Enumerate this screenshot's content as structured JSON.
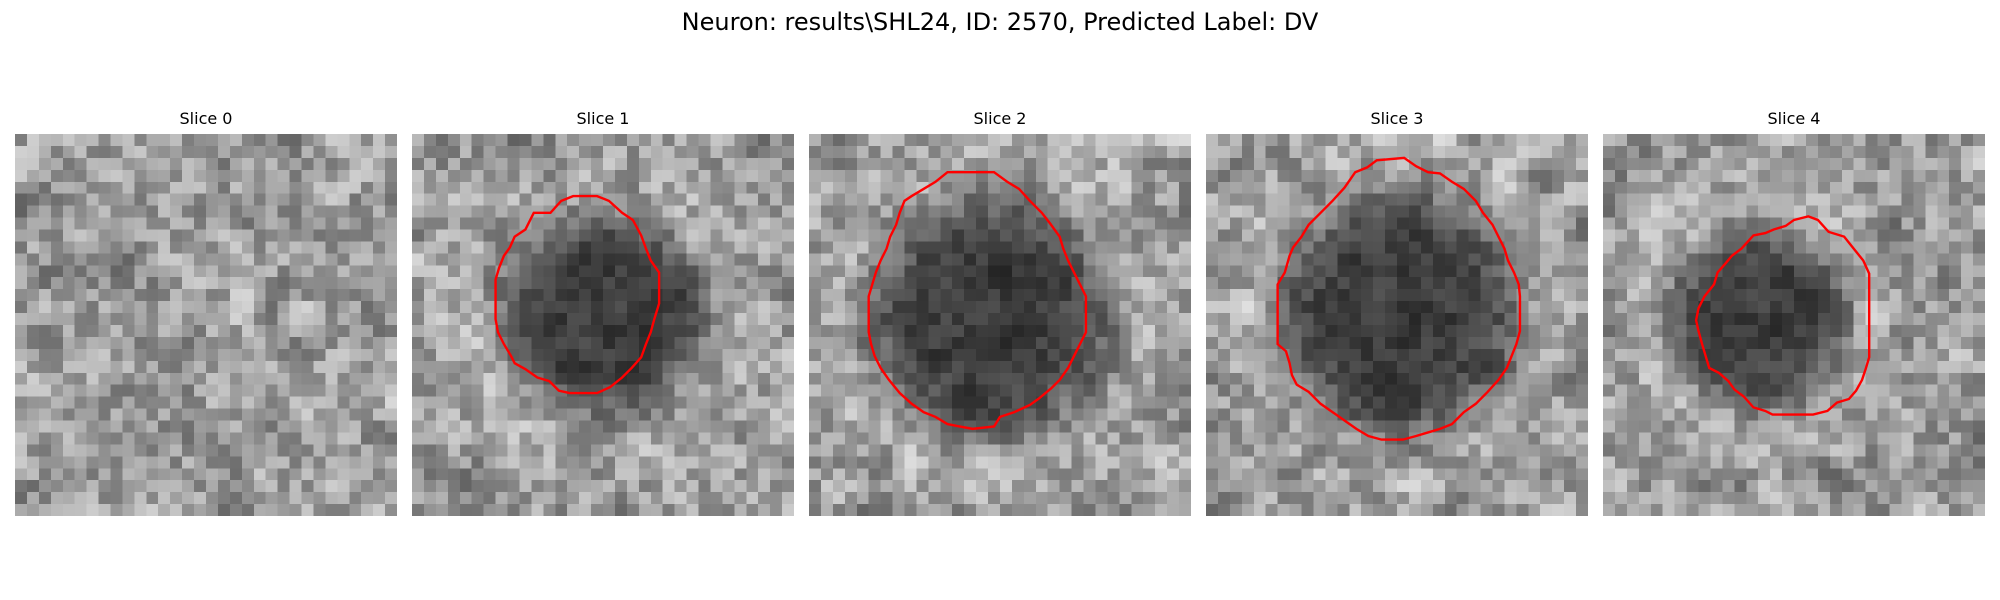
{
  "title": "Neuron: results\\SHL24, ID: 2570, Predicted Label: DV",
  "contour_color": "#ff0000",
  "colormap": "gray",
  "grid_size": 32,
  "slices": [
    {
      "label": "Slice 0",
      "seed": 11,
      "has_contour": false,
      "blob": null,
      "contour": []
    },
    {
      "label": "Slice 1",
      "seed": 23,
      "has_contour": true,
      "blob": {
        "cx": 16.0,
        "cy": 15.2,
        "rx": 8.6,
        "ry": 8.2
      },
      "contour": [
        [
          10.2,
          6.6
        ],
        [
          11.6,
          6.6
        ],
        [
          12.5,
          5.6
        ],
        [
          13.5,
          5.2
        ],
        [
          15.5,
          5.2
        ],
        [
          16.5,
          5.6
        ],
        [
          17.6,
          6.6
        ],
        [
          18.5,
          7.2
        ],
        [
          19.2,
          8.5
        ],
        [
          19.6,
          9.6
        ],
        [
          20.0,
          10.6
        ],
        [
          20.7,
          11.6
        ],
        [
          20.7,
          14.2
        ],
        [
          20.3,
          15.5
        ],
        [
          20.0,
          16.6
        ],
        [
          19.6,
          17.6
        ],
        [
          19.2,
          18.7
        ],
        [
          18.4,
          19.6
        ],
        [
          17.6,
          20.4
        ],
        [
          16.6,
          21.2
        ],
        [
          15.5,
          21.7
        ],
        [
          13.2,
          21.7
        ],
        [
          12.3,
          21.5
        ],
        [
          11.5,
          20.7
        ],
        [
          10.5,
          20.4
        ],
        [
          9.5,
          19.7
        ],
        [
          8.6,
          19.2
        ],
        [
          8.3,
          18.6
        ],
        [
          7.7,
          17.6
        ],
        [
          7.2,
          16.6
        ],
        [
          7.0,
          15.5
        ],
        [
          7.0,
          12.2
        ],
        [
          7.3,
          11.2
        ],
        [
          7.7,
          10.2
        ],
        [
          8.2,
          9.5
        ],
        [
          8.6,
          8.6
        ],
        [
          9.5,
          8.0
        ]
      ]
    },
    {
      "label": "Slice 2",
      "seed": 37,
      "has_contour": true,
      "blob": {
        "cx": 15.2,
        "cy": 15.5,
        "rx": 9.8,
        "ry": 10.0
      },
      "contour": [
        [
          8.6,
          5.2
        ],
        [
          9.6,
          4.6
        ],
        [
          10.6,
          4.0
        ],
        [
          11.6,
          3.2
        ],
        [
          15.5,
          3.2
        ],
        [
          16.6,
          4.0
        ],
        [
          17.6,
          4.6
        ],
        [
          18.5,
          5.6
        ],
        [
          19.5,
          6.6
        ],
        [
          20.2,
          7.5
        ],
        [
          21.0,
          8.6
        ],
        [
          21.3,
          9.6
        ],
        [
          21.7,
          10.6
        ],
        [
          22.2,
          11.6
        ],
        [
          22.7,
          12.6
        ],
        [
          23.2,
          13.6
        ],
        [
          23.2,
          16.6
        ],
        [
          22.7,
          17.6
        ],
        [
          22.2,
          18.6
        ],
        [
          21.7,
          19.6
        ],
        [
          21.0,
          20.6
        ],
        [
          20.3,
          21.3
        ],
        [
          19.2,
          22.2
        ],
        [
          18.5,
          22.7
        ],
        [
          17.2,
          23.3
        ],
        [
          16.0,
          23.7
        ],
        [
          15.5,
          24.5
        ],
        [
          13.7,
          24.7
        ],
        [
          12.6,
          24.5
        ],
        [
          11.6,
          24.3
        ],
        [
          10.6,
          23.7
        ],
        [
          9.6,
          23.3
        ],
        [
          8.6,
          22.6
        ],
        [
          7.6,
          21.7
        ],
        [
          6.7,
          20.6
        ],
        [
          6.0,
          19.6
        ],
        [
          5.5,
          18.6
        ],
        [
          5.2,
          17.6
        ],
        [
          5.0,
          16.6
        ],
        [
          5.0,
          13.6
        ],
        [
          5.3,
          12.6
        ],
        [
          5.6,
          11.6
        ],
        [
          6.0,
          10.6
        ],
        [
          6.5,
          9.6
        ],
        [
          6.8,
          8.6
        ],
        [
          7.3,
          7.6
        ],
        [
          7.6,
          6.6
        ],
        [
          8.0,
          5.6
        ]
      ]
    },
    {
      "label": "Slice 3",
      "seed": 51,
      "has_contour": true,
      "blob": {
        "cx": 16.2,
        "cy": 15.0,
        "rx": 10.0,
        "ry": 10.2
      },
      "contour": [
        [
          12.5,
          3.2
        ],
        [
          13.5,
          2.8
        ],
        [
          14.3,
          2.2
        ],
        [
          16.6,
          2.0
        ],
        [
          17.6,
          2.7
        ],
        [
          18.6,
          3.2
        ],
        [
          19.6,
          3.3
        ],
        [
          20.6,
          4.0
        ],
        [
          21.6,
          4.6
        ],
        [
          22.6,
          5.6
        ],
        [
          23.2,
          6.6
        ],
        [
          24.0,
          7.6
        ],
        [
          24.5,
          8.6
        ],
        [
          25.0,
          9.6
        ],
        [
          25.3,
          10.6
        ],
        [
          25.8,
          11.6
        ],
        [
          26.2,
          12.6
        ],
        [
          26.3,
          13.6
        ],
        [
          26.3,
          16.5
        ],
        [
          26.0,
          17.6
        ],
        [
          25.6,
          18.6
        ],
        [
          25.2,
          19.6
        ],
        [
          24.5,
          20.6
        ],
        [
          23.6,
          21.6
        ],
        [
          22.6,
          22.6
        ],
        [
          21.6,
          23.3
        ],
        [
          20.6,
          24.3
        ],
        [
          19.6,
          24.7
        ],
        [
          18.6,
          25.0
        ],
        [
          17.6,
          25.3
        ],
        [
          16.5,
          25.6
        ],
        [
          14.7,
          25.6
        ],
        [
          13.6,
          25.3
        ],
        [
          12.6,
          24.7
        ],
        [
          11.6,
          24.0
        ],
        [
          10.6,
          23.3
        ],
        [
          9.6,
          22.6
        ],
        [
          8.6,
          21.6
        ],
        [
          7.6,
          21.0
        ],
        [
          7.2,
          20.2
        ],
        [
          7.0,
          19.2
        ],
        [
          6.7,
          18.2
        ],
        [
          6.0,
          17.6
        ],
        [
          6.0,
          12.6
        ],
        [
          6.6,
          11.6
        ],
        [
          7.0,
          10.2
        ],
        [
          7.3,
          9.5
        ],
        [
          8.0,
          8.6
        ],
        [
          8.6,
          7.6
        ],
        [
          9.6,
          6.6
        ],
        [
          10.6,
          5.6
        ],
        [
          11.6,
          4.5
        ]
      ]
    },
    {
      "label": "Slice 4",
      "seed": 67,
      "has_contour": true,
      "blob": {
        "cx": 13.2,
        "cy": 15.4,
        "rx": 7.4,
        "ry": 7.4
      },
      "contour": [
        [
          12.6,
          8.5
        ],
        [
          13.6,
          8.3
        ],
        [
          14.3,
          8.0
        ],
        [
          15.3,
          7.7
        ],
        [
          16.0,
          7.2
        ],
        [
          17.2,
          6.9
        ],
        [
          18.0,
          7.2
        ],
        [
          18.9,
          8.2
        ],
        [
          20.2,
          8.6
        ],
        [
          21.0,
          9.6
        ],
        [
          21.8,
          10.6
        ],
        [
          22.3,
          11.7
        ],
        [
          22.3,
          18.7
        ],
        [
          22.0,
          19.7
        ],
        [
          21.7,
          20.6
        ],
        [
          21.2,
          21.5
        ],
        [
          20.6,
          22.2
        ],
        [
          19.6,
          22.5
        ],
        [
          18.8,
          23.2
        ],
        [
          17.6,
          23.5
        ],
        [
          14.2,
          23.5
        ],
        [
          13.6,
          23.2
        ],
        [
          12.6,
          22.9
        ],
        [
          11.8,
          22.0
        ],
        [
          11.0,
          21.4
        ],
        [
          10.5,
          20.7
        ],
        [
          9.7,
          20.0
        ],
        [
          8.9,
          19.6
        ],
        [
          8.6,
          18.6
        ],
        [
          8.3,
          17.6
        ],
        [
          8.0,
          16.5
        ],
        [
          7.8,
          15.6
        ],
        [
          8.0,
          14.6
        ],
        [
          8.5,
          13.6
        ],
        [
          9.3,
          12.6
        ],
        [
          9.6,
          11.6
        ],
        [
          10.3,
          10.8
        ],
        [
          10.8,
          10.2
        ],
        [
          11.6,
          9.6
        ]
      ]
    }
  ]
}
